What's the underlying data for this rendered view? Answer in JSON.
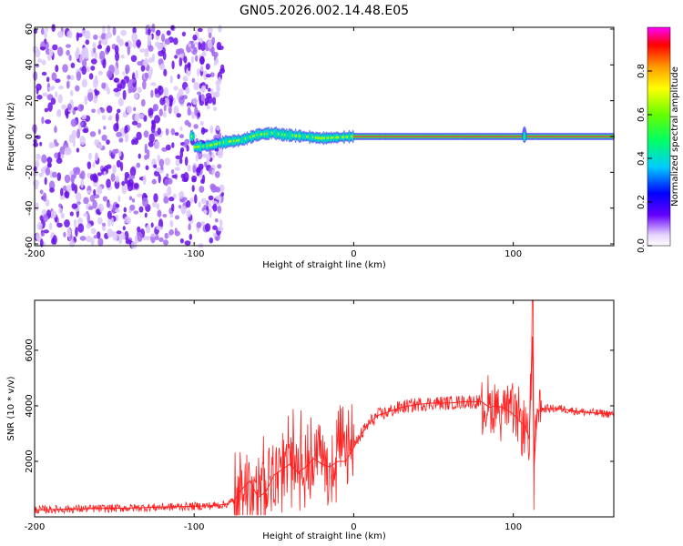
{
  "chart_data": [
    {
      "type": "heatmap",
      "title": "GN05.2026.002.14.48.E05",
      "xlabel": "Height of straight line (km)",
      "ylabel": "Frequency (Hz)",
      "xlim": [
        -200,
        163
      ],
      "ylim": [
        -61,
        61
      ],
      "xticks": [
        -200,
        -100,
        0,
        100
      ],
      "yticks": [
        60,
        40,
        20,
        0,
        -20,
        -40,
        -60
      ],
      "noise_region_x": [
        -200,
        -82
      ],
      "signal_path": [
        {
          "x": -100,
          "y": -6
        },
        {
          "x": -90,
          "y": -5
        },
        {
          "x": -80,
          "y": -3
        },
        {
          "x": -70,
          "y": -2
        },
        {
          "x": -60,
          "y": 1
        },
        {
          "x": -50,
          "y": 2
        },
        {
          "x": -45,
          "y": 1
        },
        {
          "x": -30,
          "y": 0
        },
        {
          "x": -20,
          "y": -1
        },
        {
          "x": 0,
          "y": 0
        },
        {
          "x": 163,
          "y": 0
        }
      ],
      "colorbar": {
        "label": "Normalized spectral amplitude",
        "ticks": [
          "0.0",
          "0.2",
          "0.4",
          "0.6",
          "0.8"
        ],
        "range": [
          0,
          1
        ]
      }
    },
    {
      "type": "line",
      "xlabel": "Height of straight line (km)",
      "ylabel": "SNR (10 * v/v)",
      "xlim": [
        -200,
        163
      ],
      "ylim": [
        0,
        7800
      ],
      "xticks": [
        -200,
        -100,
        0,
        100
      ],
      "yticks": [
        2000,
        4000,
        6000
      ],
      "series": [
        {
          "name": "SNR",
          "color": "#ff2020",
          "points": [
            [
              -200,
              250
            ],
            [
              -180,
              280
            ],
            [
              -160,
              300
            ],
            [
              -140,
              320
            ],
            [
              -120,
              350
            ],
            [
              -100,
              380
            ],
            [
              -90,
              400
            ],
            [
              -80,
              450
            ],
            [
              -75,
              600
            ],
            [
              -70,
              1000
            ],
            [
              -65,
              1300
            ],
            [
              -60,
              700
            ],
            [
              -55,
              900
            ],
            [
              -50,
              1500
            ],
            [
              -45,
              1700
            ],
            [
              -40,
              1900
            ],
            [
              -35,
              1600
            ],
            [
              -30,
              1800
            ],
            [
              -25,
              2100
            ],
            [
              -20,
              1900
            ],
            [
              -15,
              1800
            ],
            [
              -10,
              2000
            ],
            [
              -5,
              2000
            ],
            [
              0,
              2500
            ],
            [
              5,
              3000
            ],
            [
              10,
              3400
            ],
            [
              15,
              3650
            ],
            [
              20,
              3750
            ],
            [
              30,
              3950
            ],
            [
              40,
              4050
            ],
            [
              50,
              4100
            ],
            [
              60,
              4100
            ],
            [
              70,
              4150
            ],
            [
              80,
              4150
            ],
            [
              85,
              3950
            ],
            [
              90,
              4000
            ],
            [
              95,
              3900
            ],
            [
              100,
              3700
            ],
            [
              105,
              3400
            ],
            [
              108,
              3200
            ],
            [
              110,
              2800
            ],
            [
              112,
              6500
            ],
            [
              113,
              1800
            ],
            [
              115,
              3800
            ],
            [
              120,
              3900
            ],
            [
              130,
              3900
            ],
            [
              140,
              3800
            ],
            [
              150,
              3750
            ],
            [
              163,
              3700
            ]
          ]
        }
      ]
    }
  ]
}
